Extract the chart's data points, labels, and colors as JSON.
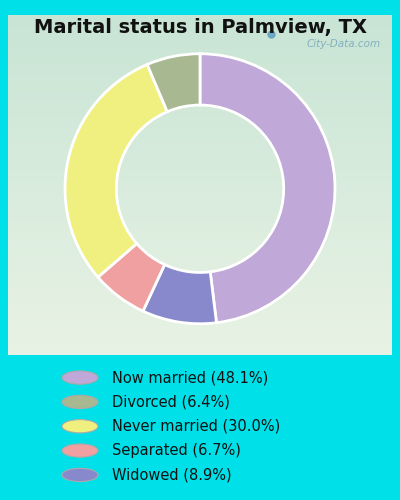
{
  "title": "Marital status in Palmview, TX",
  "slices": [
    48.1,
    8.9,
    6.7,
    30.0,
    6.4
  ],
  "labels": [
    "Now married (48.1%)",
    "Divorced (6.4%)",
    "Never married (30.0%)",
    "Separated (6.7%)",
    "Widowed (8.9%)"
  ],
  "legend_labels": [
    "Now married (48.1%)",
    "Divorced (6.4%)",
    "Never married (30.0%)",
    "Separated (6.7%)",
    "Widowed (8.9%)"
  ],
  "slice_colors": [
    "#C0A8D8",
    "#8888CC",
    "#F0A0A0",
    "#F0F080",
    "#A8B890"
  ],
  "legend_colors": [
    "#C0A8D8",
    "#A8B890",
    "#F0F080",
    "#F0A0A0",
    "#8888CC"
  ],
  "bg_cyan": "#00E0E8",
  "chart_bg_top": "#C8E4D4",
  "chart_bg_bottom": "#E8F2E4",
  "title_fontsize": 14,
  "legend_fontsize": 10.5,
  "watermark": "City-Data.com",
  "donut_width": 0.38,
  "startangle": 90
}
